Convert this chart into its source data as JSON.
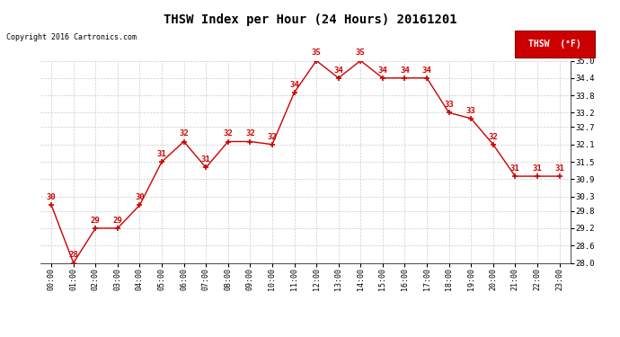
{
  "title": "THSW Index per Hour (24 Hours) 20161201",
  "copyright": "Copyright 2016 Cartronics.com",
  "legend_label": "THSW  (°F)",
  "hours": [
    "00:00",
    "01:00",
    "02:00",
    "03:00",
    "04:00",
    "05:00",
    "06:00",
    "07:00",
    "08:00",
    "09:00",
    "10:00",
    "11:00",
    "12:00",
    "13:00",
    "14:00",
    "15:00",
    "16:00",
    "17:00",
    "18:00",
    "19:00",
    "20:00",
    "21:00",
    "22:00",
    "23:00"
  ],
  "values": [
    30.0,
    28.0,
    29.2,
    29.2,
    30.0,
    31.5,
    32.2,
    31.3,
    32.2,
    32.2,
    32.1,
    33.9,
    35.0,
    34.4,
    35.0,
    34.4,
    34.4,
    34.4,
    33.2,
    33.0,
    32.1,
    31.0,
    31.0,
    31.0
  ],
  "labels": [
    "30",
    "28",
    "29",
    "29",
    "30",
    "31",
    "32",
    "31",
    "32",
    "32",
    "32",
    "34",
    "35",
    "34",
    "35",
    "34",
    "34",
    "34",
    "33",
    "33",
    "32",
    "31",
    "31",
    "31"
  ],
  "ylim_min": 28.0,
  "ylim_max": 35.0,
  "yticks": [
    28.0,
    28.6,
    29.2,
    29.8,
    30.3,
    30.9,
    31.5,
    32.1,
    32.7,
    33.2,
    33.8,
    34.4,
    35.0
  ],
  "line_color": "#cc0000",
  "marker_color": "#cc0000",
  "label_color": "#cc0000",
  "title_color": "#000000",
  "bg_color": "#ffffff",
  "grid_color": "#cccccc",
  "legend_bg": "#cc0000",
  "legend_text_color": "#ffffff"
}
